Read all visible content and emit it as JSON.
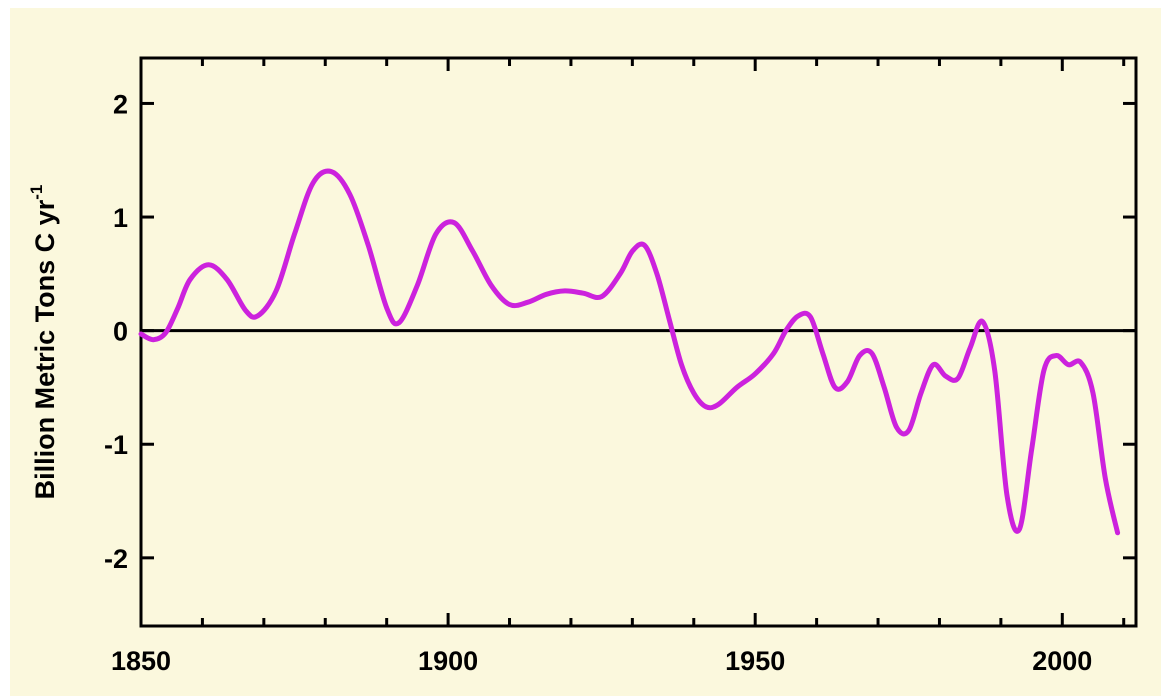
{
  "chart_data": {
    "type": "line",
    "title": "",
    "xlabel": "",
    "ylabel": "Billion Metric Tons C yr",
    "ylabel_superscript": "-1",
    "xlim": [
      1850,
      2012
    ],
    "ylim": [
      -2.6,
      2.4
    ],
    "x_ticks": [
      1850,
      1900,
      1950,
      2000
    ],
    "y_ticks": [
      2,
      1,
      0,
      -1,
      -2
    ],
    "x_tick_labels": [
      "1850",
      "1900",
      "1950",
      "2000"
    ],
    "y_tick_labels": [
      "2",
      "1",
      "0",
      "-1",
      "-2"
    ],
    "grid": false,
    "legend": "none",
    "zero_line": true,
    "series": [
      {
        "color": "#cc22dd",
        "x": [
          1850,
          1852,
          1854,
          1856,
          1858,
          1861,
          1864,
          1867,
          1869,
          1872,
          1875,
          1878,
          1881,
          1884,
          1887,
          1890,
          1892,
          1895,
          1898,
          1901,
          1904,
          1907,
          1910,
          1913,
          1916,
          1919,
          1922,
          1925,
          1928,
          1930,
          1932,
          1934,
          1936,
          1938,
          1940,
          1942,
          1944,
          1947,
          1950,
          1953,
          1955,
          1957,
          1959,
          1961,
          1963,
          1965,
          1967,
          1969,
          1971,
          1973,
          1975,
          1977,
          1979,
          1981,
          1983,
          1985,
          1987,
          1989,
          1991,
          1993,
          1995,
          1997,
          1999,
          2001,
          2003,
          2005,
          2007,
          2009
        ],
        "y": [
          -0.03,
          -0.08,
          -0.02,
          0.2,
          0.45,
          0.58,
          0.45,
          0.18,
          0.13,
          0.35,
          0.85,
          1.3,
          1.4,
          1.2,
          0.75,
          0.2,
          0.07,
          0.4,
          0.85,
          0.95,
          0.7,
          0.4,
          0.23,
          0.25,
          0.32,
          0.35,
          0.33,
          0.3,
          0.5,
          0.7,
          0.75,
          0.5,
          0.1,
          -0.3,
          -0.55,
          -0.67,
          -0.65,
          -0.5,
          -0.38,
          -0.2,
          0.0,
          0.13,
          0.12,
          -0.2,
          -0.5,
          -0.45,
          -0.22,
          -0.2,
          -0.5,
          -0.85,
          -0.88,
          -0.55,
          -0.3,
          -0.4,
          -0.42,
          -0.15,
          0.08,
          -0.35,
          -1.45,
          -1.75,
          -1.05,
          -0.35,
          -0.22,
          -0.3,
          -0.28,
          -0.55,
          -1.3,
          -1.78
        ]
      }
    ]
  }
}
